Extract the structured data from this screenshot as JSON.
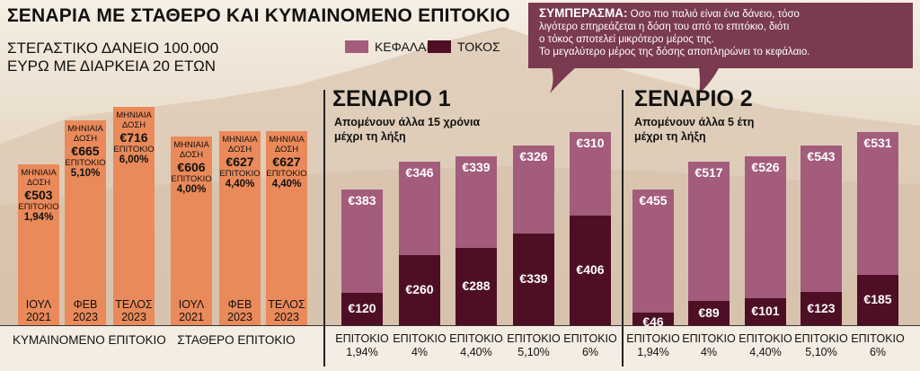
{
  "title": "ΣΕΝΑΡΙΑ ΜΕ ΣΤΑΘΕΡΟ ΚΑΙ ΚΥΜΑΙΝΟΜΕΝΟ ΕΠΙΤΟΚΙΟ",
  "subtitle_line1": "ΣΤΕΓΑΣΤΙΚΟ ΔΑΝΕΙΟ 100.000",
  "subtitle_line2": "ΕΥΡΩ ΜΕ ΔΙΑΡΚΕΙΑ 20 ΕΤΩΝ",
  "legend": [
    {
      "label": "ΚΕΦΑΛΑΙΟ",
      "color": "#a35c7c"
    },
    {
      "label": "ΤΟΚΟΣ",
      "color": "#4e0f24"
    }
  ],
  "callout": {
    "heading": "ΣΥΜΠΕΡΑΣΜΑ:",
    "line1": "Οσο πιο παλιό είναι ένα δάνειο, τόσο",
    "line2": "λιγότερο επηρεάζεται η δόση του από το επιτόκιο, διότι",
    "line3": "ο τόκος αποτελεί μικρότερο μέρος της.",
    "line4": "Το μεγαλύτερο μέρος της δόσης αποπληρώνει το κεφάλαιο.",
    "color": "#7a3a4f"
  },
  "colors": {
    "orange": "#ea8a5a",
    "principal": "#a35c7c",
    "interest": "#4e0f24"
  },
  "footer": {
    "floating": "ΚΥΜΑΙΝΟΜΕΝΟ ΕΠΙΤΟΚΙΟ",
    "fixed": "ΣΤΑΘΕΡΟ ΕΠΙΤΟΚΙΟ"
  },
  "chart_data": [
    {
      "type": "bar",
      "group": "ΚΥΜΑΙΝΟΜΕΝΟ ΕΠΙΤΟΚΙΟ",
      "categories": [
        "ΙΟΥΛ 2021",
        "ΦΕΒ 2023",
        "ΤΕΛΟΣ 2023"
      ],
      "cat_line1": [
        "ΙΟΥΛ",
        "ΦΕΒ",
        "ΤΕΛΟΣ"
      ],
      "cat_line2": [
        "2021",
        "2023",
        "2023"
      ],
      "payment_label": [
        "ΜΗΝΙΑΙΑ",
        "ΜΗΝΙΑΙΑ",
        "ΜΗΝΙΑΙΑ"
      ],
      "payment_label2": [
        "ΔΟΣΗ",
        "ΔΟΣΗ",
        "ΔΟΣΗ"
      ],
      "payments": [
        "€503",
        "€665",
        "€716"
      ],
      "payment_values": [
        503,
        665,
        716
      ],
      "rate_label": [
        "ΕΠΙΤΟΚΙΟ",
        "ΕΠΙΤΟΚΙΟ",
        "ΕΠΙΤΟΚΙΟ"
      ],
      "rates": [
        "1,94%",
        "5,10%",
        "6,00%"
      ]
    },
    {
      "type": "bar",
      "group": "ΣΤΑΘΕΡΟ ΕΠΙΤΟΚΙΟ",
      "categories": [
        "ΙΟΥΛ 2021",
        "ΦΕΒ 2023",
        "ΤΕΛΟΣ 2023"
      ],
      "cat_line1": [
        "ΙΟΥΛ",
        "ΦΕΒ",
        "ΤΕΛΟΣ"
      ],
      "cat_line2": [
        "2021",
        "2023",
        "2023"
      ],
      "payment_label": [
        "ΜΗΝΙΑΙΑ",
        "ΜΗΝΙΑΙΑ",
        "ΜΗΝΙΑΙΑ"
      ],
      "payment_label2": [
        "ΔΟΣΗ",
        "ΔΟΣΗ",
        "ΔΟΣΗ"
      ],
      "payments": [
        "€606",
        "€627",
        "€627"
      ],
      "payment_values": [
        606,
        627,
        627
      ],
      "rate_label": [
        "ΕΠΙΤΟΚΙΟ",
        "ΕΠΙΤΟΚΙΟ",
        "ΕΠΙΤΟΚΙΟ"
      ],
      "rates": [
        "4,00%",
        "4,40%",
        "4,40%"
      ]
    },
    {
      "type": "bar",
      "stacked": true,
      "title": "ΣΕΝΑΡΙΟ 1",
      "subtitle_line1": "Απομένουν άλλα 15 χρόνια",
      "subtitle_line2": "μέχρι τη λήξη",
      "categories": [
        "ΕΠΙΤΟΚΙΟ 1,94%",
        "ΕΠΙΤΟΚΙΟ 4%",
        "ΕΠΙΤΟΚΙΟ 4,40%",
        "ΕΠΙΤΟΚΙΟ 5,10%",
        "ΕΠΙΤΟΚΙΟ 6%"
      ],
      "cat_line1": [
        "ΕΠΙΤΟΚΙΟ",
        "ΕΠΙΤΟΚΙΟ",
        "ΕΠΙΤΟΚΙΟ",
        "ΕΠΙΤΟΚΙΟ",
        "ΕΠΙΤΟΚΙΟ"
      ],
      "cat_line2": [
        "1,94%",
        "4%",
        "4,40%",
        "5,10%",
        "6%"
      ],
      "series": [
        {
          "name": "ΚΕΦΑΛΑΙΟ",
          "values": [
            383,
            346,
            339,
            326,
            310
          ],
          "labels": [
            "€383",
            "€346",
            "€339",
            "€326",
            "€310"
          ]
        },
        {
          "name": "ΤΟΚΟΣ",
          "values": [
            120,
            260,
            288,
            339,
            406
          ],
          "labels": [
            "€120",
            "€260",
            "€288",
            "€339",
            "€406"
          ]
        }
      ]
    },
    {
      "type": "bar",
      "stacked": true,
      "title": "ΣΕΝΑΡΙΟ 2",
      "subtitle_line1": "Απομένουν άλλα 5 έτη",
      "subtitle_line2": "μέχρι τη λήξη",
      "categories": [
        "ΕΠΙΤΟΚΙΟ 1,94%",
        "ΕΠΙΤΟΚΙΟ 4%",
        "ΕΠΙΤΟΚΙΟ 4,40%",
        "ΕΠΙΤΟΚΙΟ 5,10%",
        "ΕΠΙΤΟΚΙΟ 6%"
      ],
      "cat_line1": [
        "ΕΠΙΤΟΚΙΟ",
        "ΕΠΙΤΟΚΙΟ",
        "ΕΠΙΤΟΚΙΟ",
        "ΕΠΙΤΟΚΙΟ",
        "ΕΠΙΤΟΚΙΟ"
      ],
      "cat_line2": [
        "1,94%",
        "4%",
        "4,40%",
        "5,10%",
        "6%"
      ],
      "series": [
        {
          "name": "ΚΕΦΑΛΑΙΟ",
          "values": [
            455,
            517,
            526,
            543,
            531
          ],
          "labels": [
            "€455",
            "€517",
            "€526",
            "€543",
            "€531"
          ]
        },
        {
          "name": "ΤΟΚΟΣ",
          "values": [
            46,
            89,
            101,
            123,
            185
          ],
          "labels": [
            "€46",
            "€89",
            "€101",
            "€123",
            "€185"
          ]
        }
      ]
    }
  ]
}
